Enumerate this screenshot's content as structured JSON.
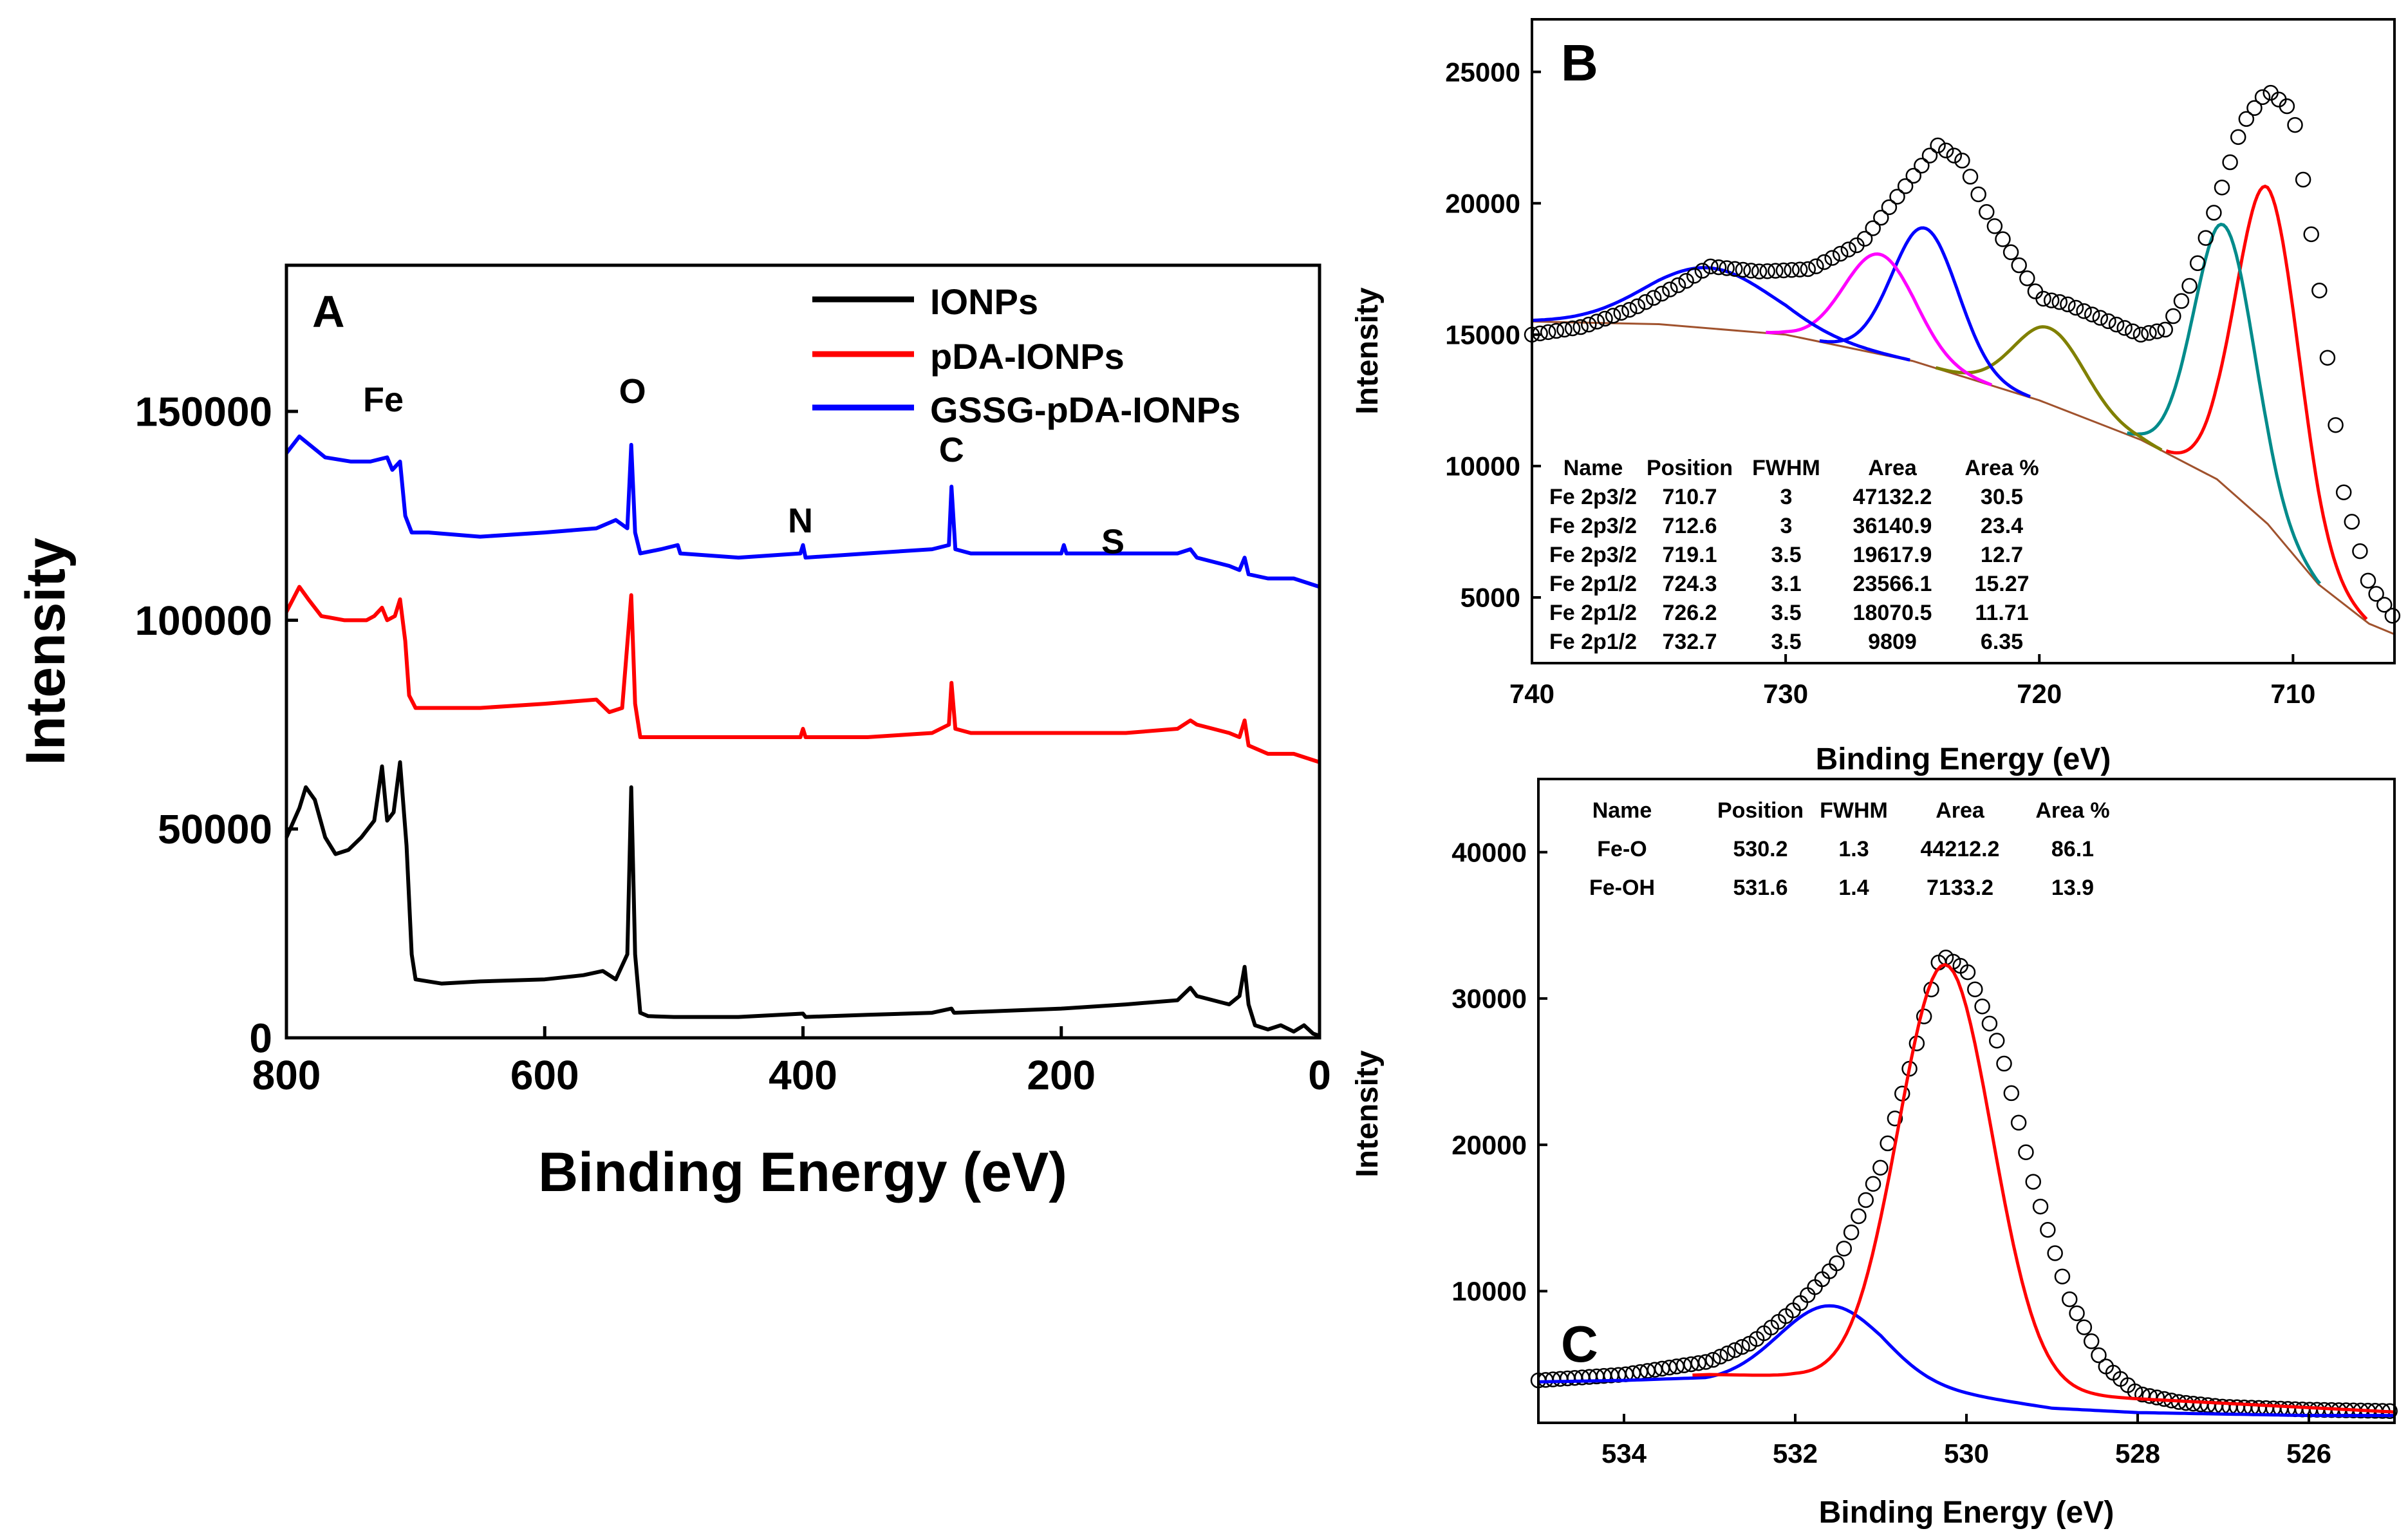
{
  "chart_data": [
    {
      "id": "A",
      "type": "line",
      "panel_label": "A",
      "xlabel": "Binding Energy (eV)",
      "ylabel": "Intensity",
      "xlim": [
        800,
        0
      ],
      "ylim": [
        0,
        185000
      ],
      "x_ticks": [
        800,
        600,
        400,
        200,
        0
      ],
      "y_ticks": [
        0,
        50000,
        100000,
        150000
      ],
      "legend": {
        "position": "top-right",
        "entries": [
          "IONPs",
          "pDA-IONPs",
          "GSSG-pDA-IONPs"
        ]
      },
      "annotations": [
        {
          "text": "Fe",
          "x": 725,
          "y": 150000
        },
        {
          "text": "O",
          "x": 532,
          "y": 152000
        },
        {
          "text": "N",
          "x": 402,
          "y": 121000
        },
        {
          "text": "C",
          "x": 285,
          "y": 138000
        },
        {
          "text": "S",
          "x": 160,
          "y": 116000
        }
      ],
      "series": [
        {
          "name": "IONPs",
          "color": "#000000",
          "points": [
            [
              800,
              48000
            ],
            [
              790,
              55000
            ],
            [
              785,
              60000
            ],
            [
              778,
              57000
            ],
            [
              770,
              48000
            ],
            [
              762,
              44000
            ],
            [
              752,
              45000
            ],
            [
              742,
              48000
            ],
            [
              732,
              52000
            ],
            [
              726,
              65000
            ],
            [
              722,
              52000
            ],
            [
              717,
              54000
            ],
            [
              712,
              66000
            ],
            [
              707,
              46000
            ],
            [
              703,
              20000
            ],
            [
              700,
              14000
            ],
            [
              680,
              13000
            ],
            [
              650,
              13500
            ],
            [
              600,
              14000
            ],
            [
              570,
              15000
            ],
            [
              555,
              16000
            ],
            [
              545,
              14000
            ],
            [
              536,
              20000
            ],
            [
              533,
              60000
            ],
            [
              530,
              20000
            ],
            [
              526,
              6000
            ],
            [
              520,
              5200
            ],
            [
              500,
              5000
            ],
            [
              450,
              5000
            ],
            [
              400,
              5800
            ],
            [
              398,
              5000
            ],
            [
              350,
              5500
            ],
            [
              300,
              6000
            ],
            [
              285,
              7000
            ],
            [
              283,
              6000
            ],
            [
              200,
              7000
            ],
            [
              150,
              8000
            ],
            [
              110,
              9000
            ],
            [
              100,
              12000
            ],
            [
              95,
              10000
            ],
            [
              70,
              8000
            ],
            [
              62,
              10000
            ],
            [
              58,
              17000
            ],
            [
              55,
              8000
            ],
            [
              50,
              3000
            ],
            [
              40,
              2000
            ],
            [
              30,
              3000
            ],
            [
              20,
              1500
            ],
            [
              12,
              3000
            ],
            [
              5,
              1000
            ],
            [
              0,
              500
            ]
          ]
        },
        {
          "name": "pDA-IONPs",
          "color": "#ff0000",
          "points": [
            [
              800,
              102000
            ],
            [
              790,
              108000
            ],
            [
              783,
              105000
            ],
            [
              773,
              101000
            ],
            [
              755,
              100000
            ],
            [
              738,
              100000
            ],
            [
              732,
              101000
            ],
            [
              726,
              103000
            ],
            [
              722,
              100000
            ],
            [
              716,
              101000
            ],
            [
              712,
              105000
            ],
            [
              708,
              95000
            ],
            [
              705,
              82000
            ],
            [
              700,
              79000
            ],
            [
              650,
              79000
            ],
            [
              600,
              80000
            ],
            [
              560,
              81000
            ],
            [
              550,
              78000
            ],
            [
              540,
              79000
            ],
            [
              533,
              106000
            ],
            [
              530,
              80000
            ],
            [
              526,
              72000
            ],
            [
              500,
              72000
            ],
            [
              450,
              72000
            ],
            [
              402,
              72000
            ],
            [
              400,
              74000
            ],
            [
              398,
              72000
            ],
            [
              350,
              72000
            ],
            [
              300,
              73000
            ],
            [
              287,
              75000
            ],
            [
              285,
              85000
            ],
            [
              282,
              74000
            ],
            [
              270,
              73000
            ],
            [
              200,
              73000
            ],
            [
              150,
              73000
            ],
            [
              110,
              74000
            ],
            [
              100,
              76000
            ],
            [
              95,
              75000
            ],
            [
              70,
              73000
            ],
            [
              62,
              72000
            ],
            [
              58,
              76000
            ],
            [
              55,
              70000
            ],
            [
              40,
              68000
            ],
            [
              20,
              68000
            ],
            [
              10,
              67000
            ],
            [
              0,
              66000
            ]
          ]
        },
        {
          "name": "GSSG-pDA-IONPs",
          "color": "#0000ff",
          "points": [
            [
              800,
              140000
            ],
            [
              790,
              144000
            ],
            [
              782,
              142000
            ],
            [
              770,
              139000
            ],
            [
              750,
              138000
            ],
            [
              735,
              138000
            ],
            [
              722,
              139000
            ],
            [
              718,
              136000
            ],
            [
              712,
              138000
            ],
            [
              708,
              125000
            ],
            [
              703,
              121000
            ],
            [
              690,
              121000
            ],
            [
              650,
              120000
            ],
            [
              600,
              121000
            ],
            [
              560,
              122000
            ],
            [
              545,
              124000
            ],
            [
              536,
              122000
            ],
            [
              533,
              142000
            ],
            [
              530,
              121000
            ],
            [
              526,
              116000
            ],
            [
              510,
              117000
            ],
            [
              497,
              118000
            ],
            [
              495,
              116000
            ],
            [
              450,
              115000
            ],
            [
              402,
              116000
            ],
            [
              400,
              118000
            ],
            [
              398,
              115000
            ],
            [
              350,
              116000
            ],
            [
              300,
              117000
            ],
            [
              287,
              118000
            ],
            [
              285,
              132000
            ],
            [
              282,
              117000
            ],
            [
              270,
              116000
            ],
            [
              200,
              116000
            ],
            [
              198,
              118000
            ],
            [
              196,
              116000
            ],
            [
              150,
              116000
            ],
            [
              110,
              116000
            ],
            [
              100,
              117000
            ],
            [
              95,
              115000
            ],
            [
              70,
              113000
            ],
            [
              62,
              112000
            ],
            [
              58,
              115000
            ],
            [
              55,
              111000
            ],
            [
              40,
              110000
            ],
            [
              20,
              110000
            ],
            [
              10,
              109000
            ],
            [
              0,
              108000
            ]
          ]
        }
      ]
    },
    {
      "id": "B",
      "type": "line",
      "panel_label": "B",
      "xlabel": "Binding Energy (eV)",
      "ylabel": "Intensity",
      "xlim": [
        740,
        706
      ],
      "ylim": [
        2500,
        27000
      ],
      "x_ticks": [
        740,
        730,
        720,
        710
      ],
      "y_ticks": [
        5000,
        10000,
        15000,
        20000,
        25000
      ],
      "table": {
        "headers": [
          "Name",
          "Position",
          "FWHM",
          "Area",
          "Area %"
        ],
        "rows": [
          [
            "Fe 2p3/2",
            "710.7",
            "3",
            "47132.2",
            "30.5"
          ],
          [
            "Fe 2p3/2",
            "712.6",
            "3",
            "36140.9",
            "23.4"
          ],
          [
            "Fe 2p3/2",
            "719.1",
            "3.5",
            "19617.9",
            "12.7"
          ],
          [
            "Fe 2p1/2",
            "724.3",
            "3.1",
            "23566.1",
            "15.27"
          ],
          [
            "Fe 2p1/2",
            "726.2",
            "3.5",
            "18070.5",
            "11.71"
          ],
          [
            "Fe 2p1/2",
            "732.7",
            "3.5",
            "9809",
            "6.35"
          ]
        ]
      },
      "baseline": {
        "color": "#a0522d",
        "points": [
          [
            740,
            15500
          ],
          [
            735,
            15400
          ],
          [
            730,
            15000
          ],
          [
            725,
            14000
          ],
          [
            720,
            12500
          ],
          [
            716,
            11000
          ],
          [
            713,
            9500
          ],
          [
            711,
            7800
          ],
          [
            709,
            5500
          ],
          [
            707,
            4000
          ],
          [
            706,
            3600
          ]
        ]
      },
      "measured": {
        "color": "#000000",
        "points": [
          [
            740,
            15000
          ],
          [
            738,
            15300
          ],
          [
            736,
            16000
          ],
          [
            734,
            17000
          ],
          [
            733,
            17600
          ],
          [
            731,
            17400
          ],
          [
            729,
            17500
          ],
          [
            727,
            18500
          ],
          [
            725,
            21000
          ],
          [
            724,
            22200
          ],
          [
            723,
            21600
          ],
          [
            722,
            19500
          ],
          [
            720,
            16400
          ],
          [
            719,
            16200
          ],
          [
            717,
            15400
          ],
          [
            716,
            15000
          ],
          [
            715,
            15200
          ],
          [
            714,
            17000
          ],
          [
            713,
            20000
          ],
          [
            712,
            23000
          ],
          [
            711,
            24300
          ],
          [
            710,
            23500
          ],
          [
            709,
            17000
          ],
          [
            708,
            9000
          ],
          [
            707,
            5500
          ],
          [
            706,
            4200
          ]
        ]
      },
      "components": [
        {
          "name": "710.7",
          "color": "#ff0000",
          "center": 711.0,
          "amp": 12800,
          "sigma": 1.25
        },
        {
          "name": "712.6",
          "color": "#008b8b",
          "center": 712.7,
          "amp": 9900,
          "sigma": 1.2
        },
        {
          "name": "719.1",
          "color": "#808000",
          "center": 719.6,
          "amp": 2900,
          "sigma": 1.4
        },
        {
          "name": "724.3",
          "color": "#0000ff",
          "center": 724.5,
          "amp": 5200,
          "sigma": 1.3
        },
        {
          "name": "726.2",
          "color": "#ff00ff",
          "center": 726.3,
          "amp": 3800,
          "sigma": 1.4
        },
        {
          "name": "732.7",
          "color": "#0000ff",
          "center": 733.0,
          "amp": 2300,
          "sigma": 2.5
        }
      ]
    },
    {
      "id": "C",
      "type": "line",
      "panel_label": "C",
      "xlabel": "Binding Energy (eV)",
      "ylabel": "Intensity",
      "xlim": [
        535,
        525
      ],
      "ylim": [
        1000,
        45000
      ],
      "x_ticks": [
        534,
        532,
        530,
        528,
        526
      ],
      "y_ticks": [
        10000,
        20000,
        30000,
        40000
      ],
      "table": {
        "headers": [
          "Name",
          "Position",
          "FWHM",
          "Area",
          "Area %"
        ],
        "rows": [
          [
            "Fe-O",
            "530.2",
            "1.3",
            "44212.2",
            "86.1"
          ],
          [
            "Fe-OH",
            "531.6",
            "1.4",
            "7133.2",
            "13.9"
          ]
        ]
      },
      "baseline": {
        "color": "#0000ff",
        "points": [
          [
            535,
            4000
          ],
          [
            534,
            4100
          ],
          [
            533,
            4300
          ],
          [
            532,
            4200
          ],
          [
            531,
            3600
          ],
          [
            530,
            2700
          ],
          [
            529,
            2200
          ],
          [
            528,
            1900
          ],
          [
            527,
            1800
          ],
          [
            526,
            1700
          ],
          [
            525,
            1700
          ]
        ]
      },
      "measured": {
        "color": "#000000",
        "points": [
          [
            535,
            3900
          ],
          [
            534,
            4300
          ],
          [
            533,
            5200
          ],
          [
            532.5,
            6500
          ],
          [
            532,
            8800
          ],
          [
            531.5,
            12000
          ],
          [
            531,
            18500
          ],
          [
            530.6,
            26500
          ],
          [
            530.3,
            33000
          ],
          [
            530,
            32000
          ],
          [
            529.6,
            26500
          ],
          [
            529.2,
            17000
          ],
          [
            528.8,
            9500
          ],
          [
            528.4,
            5000
          ],
          [
            528,
            3000
          ],
          [
            527.5,
            2400
          ],
          [
            527,
            2100
          ],
          [
            526,
            1900
          ],
          [
            525,
            1800
          ]
        ]
      },
      "components": [
        {
          "name": "Fe-O",
          "color": "#ff0000",
          "center": 530.25,
          "amp": 29000,
          "sigma": 0.55
        },
        {
          "name": "Fe-OH",
          "color": "#0000ff",
          "center": 531.6,
          "amp": 5200,
          "sigma": 0.6
        }
      ]
    }
  ]
}
